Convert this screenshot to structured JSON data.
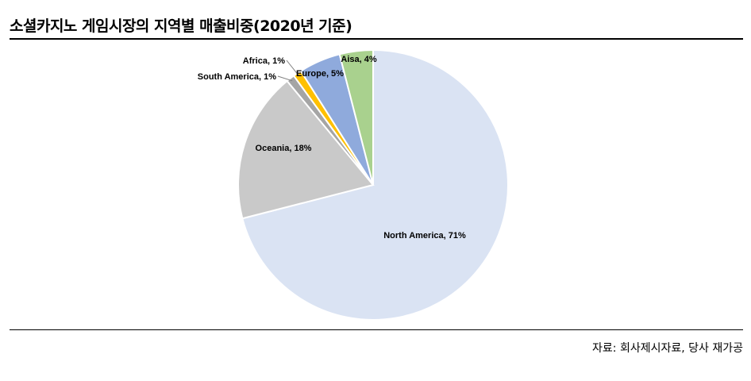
{
  "page": {
    "title": "소셜카지노 게임시장의 지역별 매출비중(2020년 기준)",
    "source": "자료: 회사제시자료, 당사 재가공"
  },
  "chart_data": {
    "type": "pie",
    "title": "소셜카지노 게임시장의 지역별 매출비중(2020년 기준)",
    "start": "12 o'clock",
    "direction": "clockwise",
    "legend": "none",
    "slices": [
      {
        "name": "North America",
        "value": 71,
        "color": "#dae3f3"
      },
      {
        "name": "Oceania",
        "value": 18,
        "color": "#c9c9c9"
      },
      {
        "name": "South America",
        "value": 1,
        "color": "#a5a5a5"
      },
      {
        "name": "Africa",
        "value": 1,
        "color": "#ffc000"
      },
      {
        "name": "Europe",
        "value": 5,
        "color": "#8faadc"
      },
      {
        "name": "Aisa",
        "value": 4,
        "color": "#a9d18e"
      }
    ],
    "labels": [
      "North America, 71%",
      "Oceania, 18%",
      "South America, 1%",
      "Africa, 1%",
      "Europe, 5%",
      "Aisa, 4%"
    ]
  }
}
